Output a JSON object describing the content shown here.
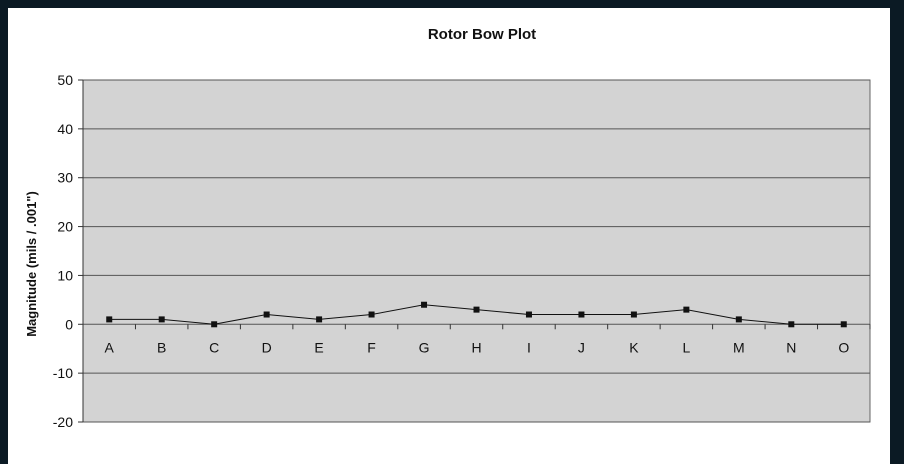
{
  "chart_data": {
    "type": "line",
    "title": "Rotor Bow Plot",
    "xlabel": "",
    "ylabel": "Magnitude (mils / .001\")",
    "categories": [
      "A",
      "B",
      "C",
      "D",
      "E",
      "F",
      "G",
      "H",
      "I",
      "J",
      "K",
      "L",
      "M",
      "N",
      "O"
    ],
    "series": [
      {
        "values": [
          1,
          1,
          0,
          2,
          1,
          2,
          4,
          3,
          2,
          2,
          2,
          3,
          1,
          0,
          0
        ]
      }
    ],
    "ylim": [
      -20,
      50
    ],
    "yticks": [
      50,
      40,
      30,
      20,
      10,
      0,
      -10,
      -20
    ],
    "ytick_labels": [
      "50",
      "40",
      "30",
      "20",
      "10",
      "0",
      "-10",
      "-20"
    ],
    "grid": true,
    "legend": "none",
    "colors": {
      "plot_background": "#d3d3d3",
      "gridline": "#555555",
      "line": "#111111",
      "marker": "#111111",
      "page_background": "#ffffff",
      "frame": "#0b1a24"
    }
  }
}
